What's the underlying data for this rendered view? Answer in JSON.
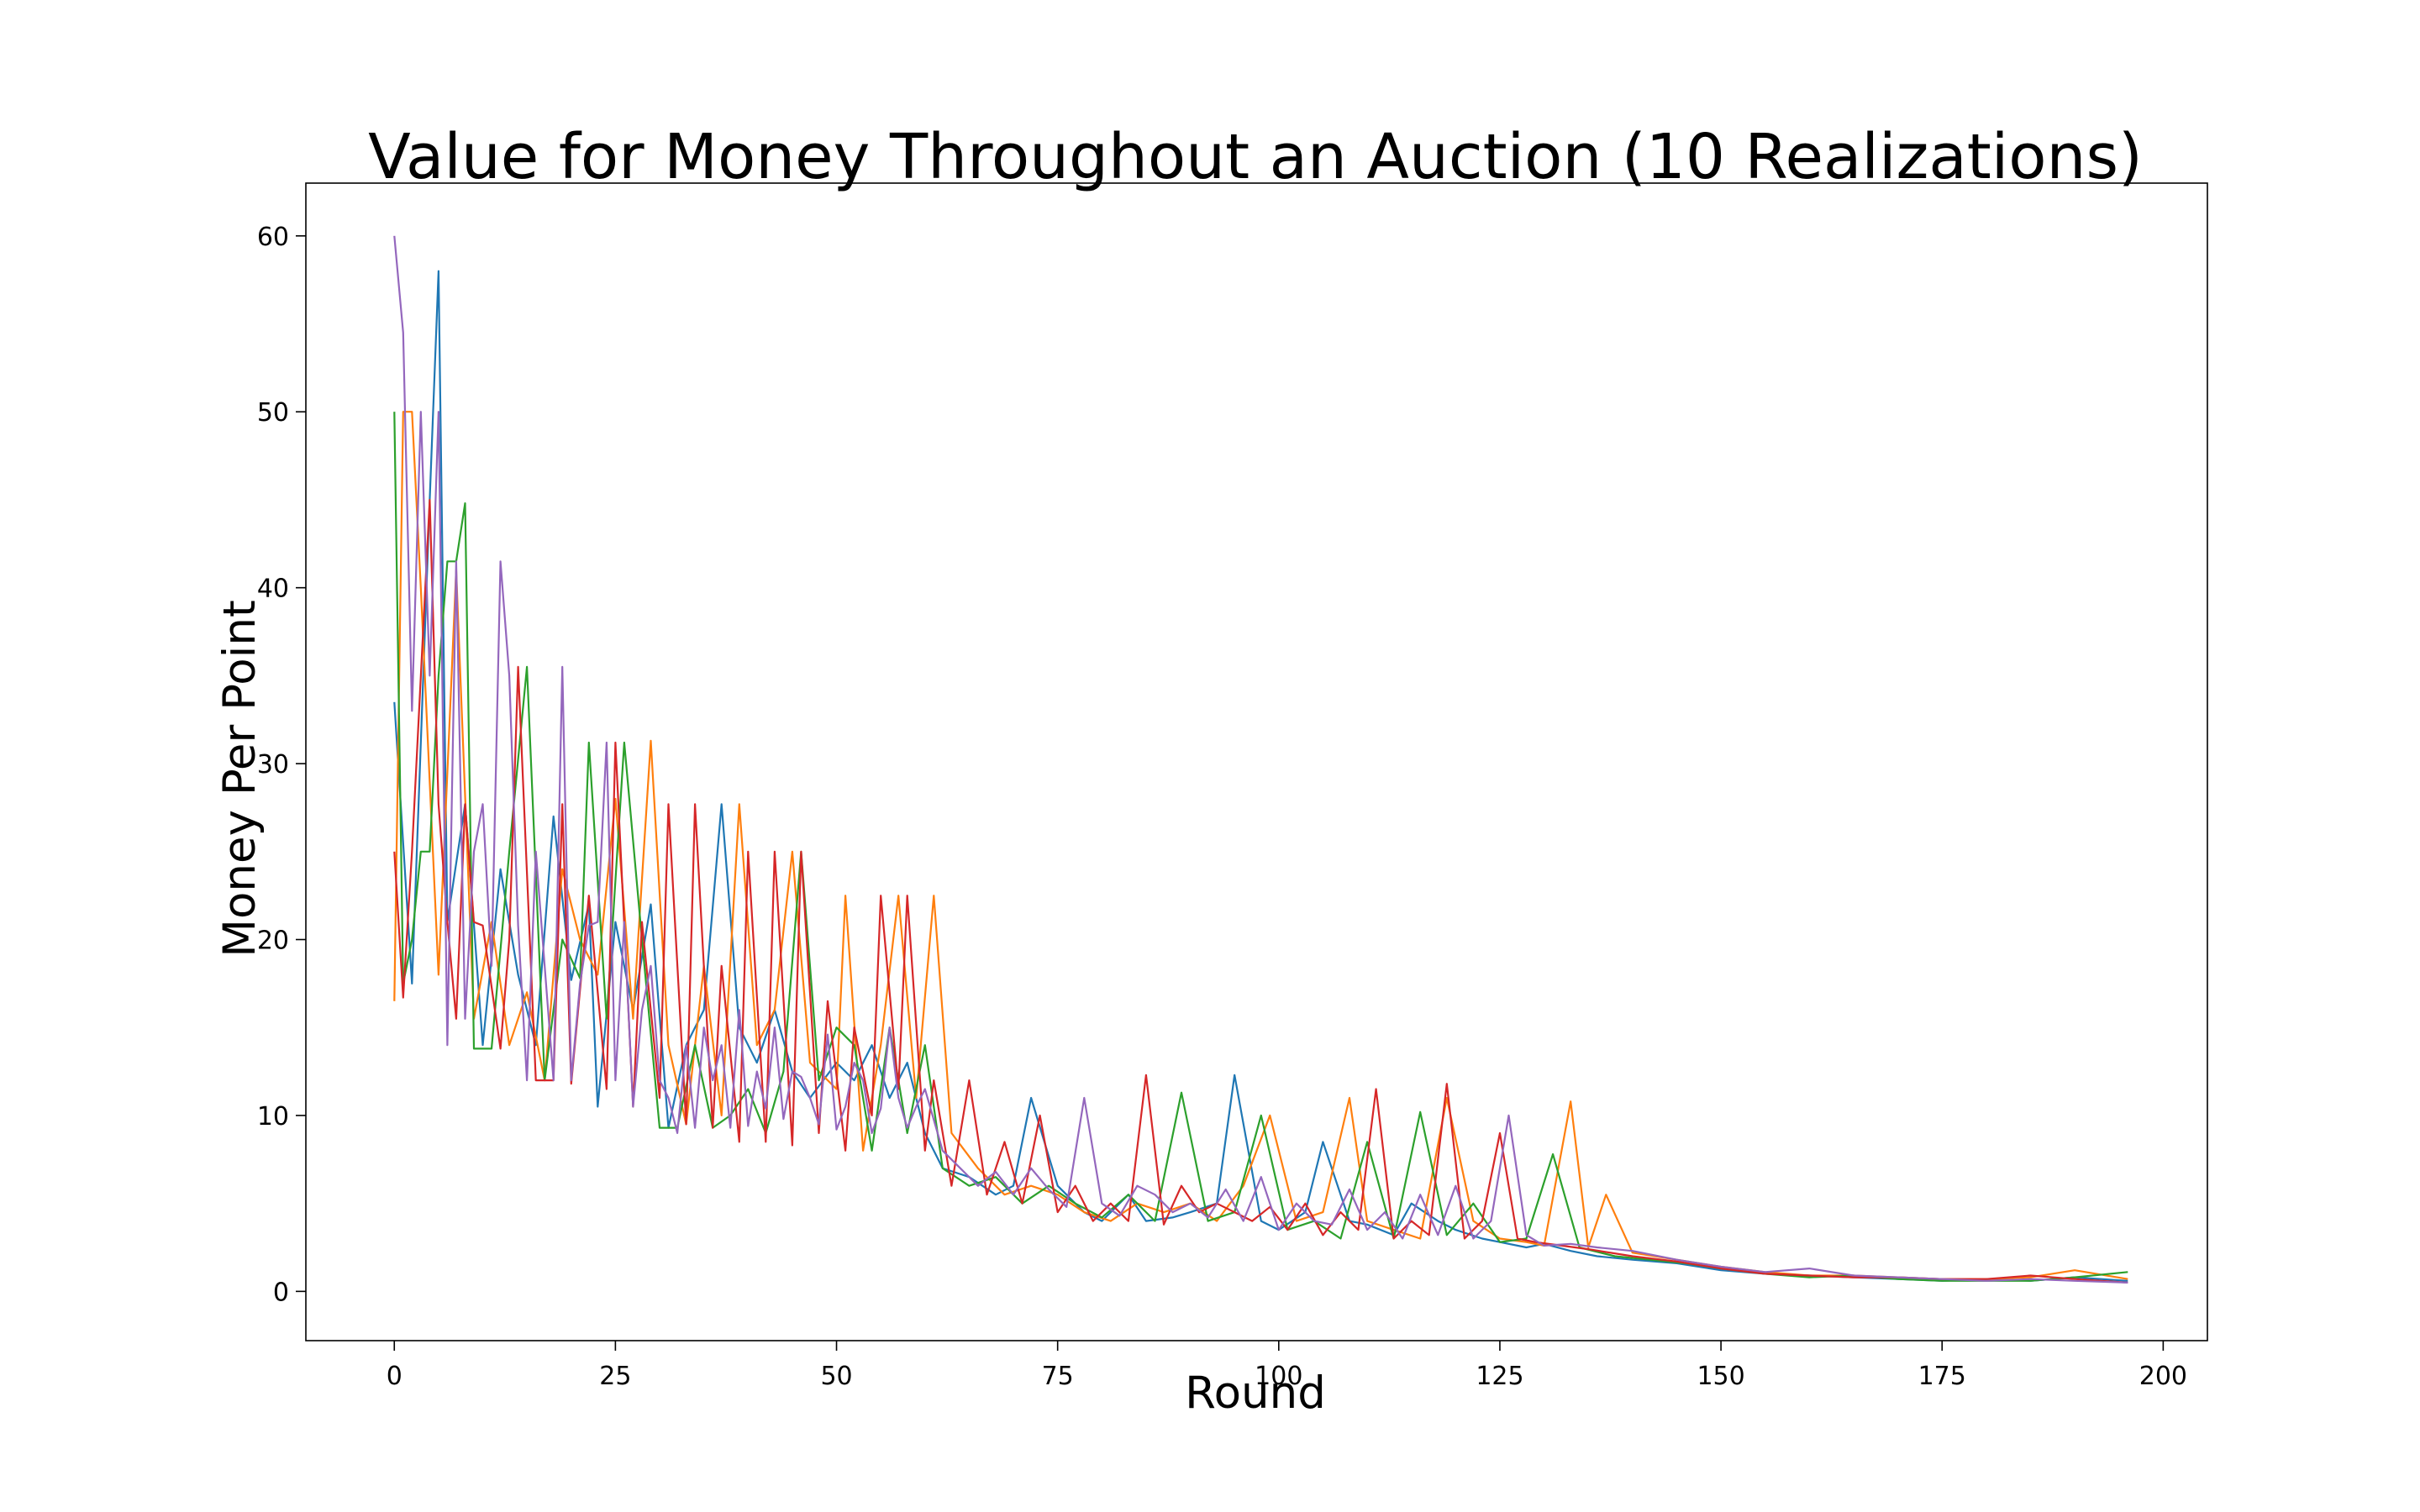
{
  "chart_data": {
    "type": "line",
    "title": "Value for Money Throughout an Auction (10 Realizations)",
    "xlabel": "Round",
    "ylabel": "Money Per Point",
    "xlim": [
      -10,
      205
    ],
    "ylim": [
      -2.8,
      63
    ],
    "xticks": [
      0,
      25,
      50,
      75,
      100,
      125,
      150,
      175,
      200
    ],
    "yticks": [
      0,
      10,
      20,
      30,
      40,
      50,
      60
    ],
    "grid": false,
    "legend": "none",
    "colors": [
      "#1f77b4",
      "#ff7f0e",
      "#2ca02c",
      "#d62728",
      "#9467bd"
    ],
    "series": [
      {
        "color": "#1f77b4",
        "x": [
          0,
          2,
          4,
          5,
          6,
          8,
          10,
          12,
          14,
          16,
          18,
          20,
          22,
          23,
          25,
          27,
          29,
          31,
          33,
          35,
          37,
          39,
          41,
          43,
          45,
          47,
          50,
          52,
          54,
          56,
          58,
          60,
          62,
          65,
          68,
          70,
          72,
          75,
          78,
          80,
          83,
          85,
          88,
          90,
          93,
          95,
          98,
          100,
          103,
          105,
          108,
          110,
          113,
          115,
          118,
          120,
          123,
          125,
          128,
          130,
          133,
          136,
          140,
          145,
          150,
          155,
          160,
          165,
          170,
          175,
          180,
          185,
          190,
          196
        ],
        "y": [
          33.5,
          17.5,
          45,
          58,
          21,
          27.7,
          14,
          24,
          18,
          14,
          27,
          17.7,
          22,
          10.5,
          21,
          16,
          22,
          9.3,
          14,
          16,
          27.7,
          15,
          13,
          16,
          12.5,
          11,
          13,
          12,
          14,
          11,
          13,
          9,
          7,
          6.5,
          5.5,
          6,
          11,
          6,
          4.5,
          4,
          5.5,
          4,
          4.2,
          4.5,
          5,
          12.3,
          4,
          3.5,
          4.5,
          8.5,
          4,
          3.8,
          3.2,
          5,
          4,
          3.5,
          3,
          2.8,
          2.5,
          2.7,
          2.3,
          2,
          1.8,
          1.6,
          1.2,
          1,
          0.9,
          0.8,
          0.7,
          0.6,
          0.7,
          0.6,
          0.8,
          0.6
        ]
      },
      {
        "color": "#ff7f0e",
        "x": [
          0,
          1,
          2,
          3,
          5,
          7,
          9,
          11,
          13,
          15,
          17,
          19,
          21,
          23,
          25,
          27,
          29,
          31,
          33,
          35,
          37,
          39,
          41,
          43,
          45,
          47,
          50,
          51,
          53,
          55,
          57,
          59,
          61,
          63,
          66,
          69,
          72,
          75,
          78,
          81,
          84,
          87,
          90,
          93,
          96,
          99,
          102,
          105,
          108,
          110,
          113,
          116,
          119,
          122,
          125,
          128,
          130,
          133,
          135,
          137,
          140,
          145,
          150,
          155,
          160,
          165,
          170,
          175,
          180,
          185,
          190,
          196
        ],
        "y": [
          16.5,
          50,
          50,
          40,
          18,
          41,
          15.5,
          21,
          14,
          17,
          12,
          24,
          20,
          18,
          28,
          15.5,
          31.3,
          14,
          9.5,
          18.5,
          10,
          27.7,
          14,
          16,
          25,
          13,
          11.5,
          22.5,
          8,
          14,
          22.5,
          11,
          22.5,
          9,
          7,
          5.5,
          6,
          5.5,
          4.5,
          4,
          5,
          4.5,
          5,
          4,
          6,
          10,
          4,
          4.5,
          11,
          4,
          3.5,
          3,
          11,
          4,
          3,
          2.8,
          2.6,
          10.8,
          2.5,
          5.5,
          2.2,
          1.8,
          1.4,
          1.1,
          0.9,
          0.9,
          0.8,
          0.7,
          0.7,
          0.8,
          1.2,
          0.7
        ]
      },
      {
        "color": "#2ca02c",
        "x": [
          0,
          1,
          2,
          3,
          4,
          5,
          6,
          7,
          8,
          9,
          11,
          13,
          15,
          17,
          19,
          21,
          22,
          24,
          26,
          28,
          30,
          32,
          34,
          36,
          38,
          40,
          42,
          44,
          46,
          48,
          50,
          52,
          54,
          56,
          58,
          60,
          62,
          65,
          68,
          71,
          74,
          77,
          80,
          83,
          86,
          89,
          92,
          95,
          98,
          101,
          104,
          107,
          110,
          113,
          116,
          119,
          122,
          125,
          128,
          131,
          134,
          138,
          142,
          146,
          150,
          155,
          160,
          165,
          170,
          175,
          180,
          185,
          190,
          196
        ],
        "y": [
          50,
          17.5,
          20,
          25,
          25,
          35,
          41.5,
          41.5,
          44.8,
          13.8,
          13.8,
          25,
          35.5,
          12,
          20,
          17.8,
          31.2,
          15.5,
          31.2,
          20,
          9.3,
          9.3,
          14,
          9.3,
          10,
          11.5,
          9,
          12.5,
          25,
          12,
          15,
          14,
          8,
          15,
          9,
          14,
          7,
          6,
          6.5,
          5,
          6,
          5,
          4.2,
          5.5,
          4,
          11.3,
          4,
          4.5,
          10,
          3.5,
          4,
          3,
          8.5,
          3,
          10.2,
          3.2,
          5,
          2.8,
          3,
          7.8,
          2.5,
          2,
          1.8,
          1.6,
          1.3,
          1,
          0.8,
          0.9,
          0.7,
          0.6,
          0.6,
          0.6,
          0.8,
          1.1
        ]
      },
      {
        "color": "#d62728",
        "x": [
          0,
          1,
          2,
          4,
          5,
          6,
          7,
          8,
          9,
          10,
          12,
          13,
          14,
          16,
          18,
          19,
          20,
          22,
          24,
          25,
          27,
          28,
          30,
          31,
          33,
          34,
          36,
          37,
          39,
          40,
          42,
          43,
          45,
          46,
          48,
          49,
          51,
          52,
          54,
          55,
          57,
          58,
          60,
          61,
          63,
          65,
          67,
          69,
          71,
          73,
          75,
          77,
          79,
          81,
          83,
          85,
          87,
          89,
          91,
          93,
          95,
          97,
          99,
          101,
          103,
          105,
          107,
          109,
          111,
          113,
          115,
          117,
          119,
          121,
          123,
          125,
          127,
          129,
          132,
          135,
          140,
          145,
          150,
          155,
          160,
          165,
          170,
          175,
          180,
          185,
          190,
          196
        ],
        "y": [
          25,
          16.7,
          25,
          45,
          27.7,
          21,
          15.5,
          27.7,
          21,
          20.8,
          13.8,
          20,
          35.5,
          12,
          12,
          27.7,
          11.8,
          22.5,
          11.5,
          31.2,
          10.5,
          21,
          11,
          27.7,
          9.5,
          27.7,
          9.3,
          18.5,
          8.5,
          25,
          8.5,
          25,
          8.3,
          25,
          9,
          16.5,
          8,
          15,
          10,
          22.5,
          11.5,
          22.5,
          8,
          12,
          6,
          12,
          5.5,
          8.5,
          5,
          10,
          4.5,
          6,
          4,
          5,
          4,
          12.3,
          3.8,
          6,
          4.5,
          5,
          4.5,
          4,
          4.8,
          3.5,
          5,
          3.2,
          4.5,
          3.5,
          11.5,
          3,
          4,
          3.2,
          11.8,
          3,
          4,
          9,
          3,
          2.8,
          2.6,
          2.4,
          2,
          1.7,
          1.3,
          1,
          0.9,
          0.8,
          0.8,
          0.7,
          0.7,
          0.9,
          0.7,
          0.5
        ]
      },
      {
        "color": "#9467bd",
        "x": [
          0,
          1,
          2,
          3,
          4,
          5,
          6,
          7,
          8,
          9,
          10,
          11,
          12,
          13,
          14,
          15,
          16,
          17,
          18,
          19,
          20,
          21,
          22,
          23,
          24,
          25,
          26,
          27,
          28,
          29,
          30,
          31,
          32,
          33,
          34,
          35,
          36,
          37,
          38,
          39,
          40,
          41,
          42,
          43,
          44,
          45,
          46,
          47,
          48,
          49,
          50,
          51,
          52,
          53,
          54,
          55,
          56,
          57,
          58,
          59,
          60,
          62,
          64,
          66,
          68,
          70,
          72,
          74,
          76,
          78,
          80,
          82,
          84,
          86,
          88,
          90,
          92,
          94,
          96,
          98,
          100,
          102,
          104,
          106,
          108,
          110,
          112,
          114,
          116,
          118,
          120,
          122,
          124,
          126,
          128,
          130,
          133,
          136,
          140,
          145,
          150,
          155,
          160,
          165,
          170,
          175,
          180,
          185,
          190,
          196
        ],
        "y": [
          60,
          54.5,
          33,
          50,
          35,
          50,
          14,
          41.5,
          15.5,
          25,
          27.7,
          18.5,
          41.5,
          35,
          20.8,
          12,
          25,
          18.5,
          12,
          35.5,
          12,
          17.5,
          20.8,
          21,
          31.2,
          12,
          21,
          10.5,
          16,
          18.5,
          12,
          11,
          9,
          14,
          9.3,
          15,
          12,
          14,
          9.3,
          16,
          9.4,
          12.5,
          10.4,
          15,
          9.8,
          12.5,
          12.2,
          11,
          9.5,
          14.6,
          9.2,
          10.5,
          13,
          12,
          9,
          10.4,
          15,
          11,
          9.3,
          10.5,
          11.5,
          8,
          7,
          6,
          6.8,
          5.5,
          7,
          5.8,
          4.8,
          11,
          5,
          4.3,
          6,
          5.5,
          4.5,
          5,
          4.2,
          5.8,
          4,
          6.5,
          3.5,
          5,
          4,
          3.8,
          5.8,
          3.5,
          4.5,
          3,
          5.5,
          3.2,
          6,
          3,
          4,
          10,
          3.2,
          2.6,
          2.7,
          2.5,
          2.3,
          1.8,
          1.4,
          1.1,
          1.3,
          0.9,
          0.8,
          0.7,
          0.6,
          0.7,
          0.6,
          0.5
        ]
      }
    ]
  }
}
